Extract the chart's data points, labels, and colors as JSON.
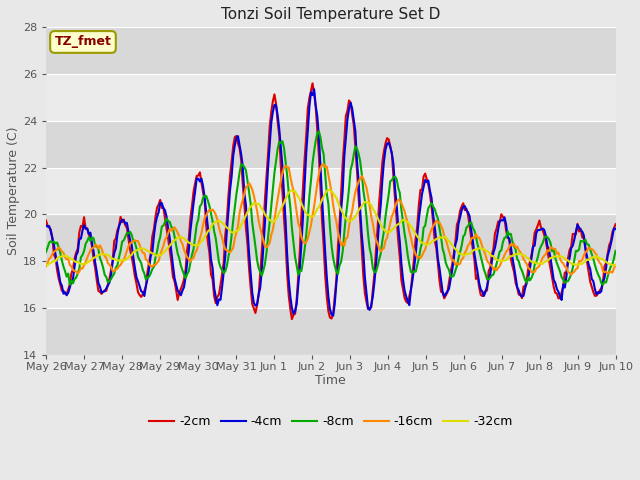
{
  "title": "Tonzi Soil Temperature Set D",
  "xlabel": "Time",
  "ylabel": "Soil Temperature (C)",
  "ylim": [
    14,
    28
  ],
  "yticks": [
    14,
    16,
    18,
    20,
    22,
    24,
    26,
    28
  ],
  "annotation_text": "TZ_fmet",
  "annotation_color": "#880000",
  "annotation_bg": "#ffffcc",
  "annotation_border": "#999900",
  "series_colors": [
    "#dd0000",
    "#0000dd",
    "#00aa00",
    "#ff8800",
    "#dddd00"
  ],
  "series_labels": [
    "-2cm",
    "-4cm",
    "-8cm",
    "-16cm",
    "-32cm"
  ],
  "line_width": 1.5,
  "fig_bg": "#e8e8e8",
  "plot_bg": "#ebebeb",
  "band_color": "#d8d8d8",
  "grid_color": "#ffffff"
}
